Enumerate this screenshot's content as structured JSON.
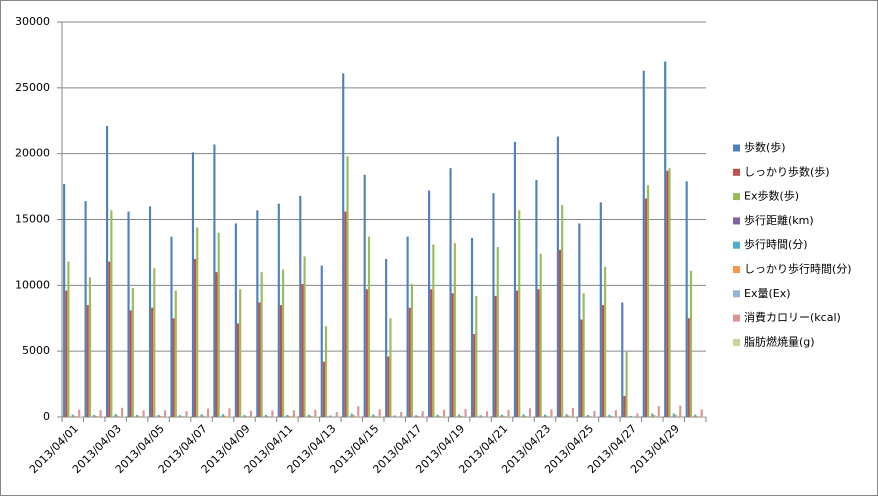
{
  "chart_data": {
    "type": "bar",
    "categories": [
      "2013/04/01",
      null,
      "2013/04/03",
      null,
      "2013/04/05",
      null,
      "2013/04/07",
      null,
      "2013/04/09",
      null,
      "2013/04/11",
      null,
      "2013/04/13",
      null,
      "2013/04/15",
      null,
      "2013/04/17",
      null,
      "2013/04/19",
      null,
      "2013/04/21",
      null,
      "2013/04/23",
      null,
      "2013/04/25",
      null,
      "2013/04/27",
      null,
      "2013/04/29",
      null
    ],
    "series": [
      {
        "name": "歩数(歩)",
        "color": "#4f81bd",
        "values": [
          17700,
          16400,
          22100,
          15600,
          16000,
          13700,
          20100,
          20700,
          14700,
          15700,
          16200,
          16800,
          11500,
          26100,
          18400,
          12000,
          13700,
          17200,
          18900,
          13600,
          17000,
          20900,
          18000,
          21300,
          14700,
          16300,
          8700,
          26300,
          27000,
          17900
        ]
      },
      {
        "name": "しっかり歩数(歩)",
        "color": "#c0504d",
        "values": [
          9600,
          8500,
          11800,
          8100,
          8300,
          7500,
          12000,
          11000,
          7100,
          8700,
          8500,
          10100,
          4200,
          15600,
          9700,
          4600,
          8300,
          9700,
          9400,
          6300,
          9200,
          9600,
          9700,
          12700,
          7400,
          8500,
          1600,
          16600,
          18700,
          7500
        ]
      },
      {
        "name": "Ex歩数(歩)",
        "color": "#9bbb59",
        "values": [
          11800,
          10600,
          15700,
          9800,
          11300,
          9600,
          14400,
          14000,
          9700,
          11000,
          11200,
          12200,
          6900,
          19800,
          13700,
          7500,
          10100,
          13100,
          13200,
          9200,
          12900,
          15700,
          12400,
          16100,
          9400,
          11400,
          5000,
          17600,
          18900,
          11100
        ]
      },
      {
        "name": "歩行距離(km)",
        "color": "#8064a2",
        "values": [
          12.1,
          11.2,
          15.0,
          10.6,
          10.9,
          9.3,
          13.7,
          14.1,
          10.0,
          10.7,
          11.0,
          11.4,
          7.8,
          17.7,
          12.5,
          8.2,
          9.3,
          11.7,
          12.9,
          9.2,
          11.6,
          14.2,
          12.2,
          14.5,
          10.0,
          11.1,
          5.9,
          17.9,
          18.4,
          12.2
        ]
      },
      {
        "name": "歩行時間(分)",
        "color": "#4bacc6",
        "values": [
          178,
          164,
          221,
          156,
          160,
          137,
          201,
          207,
          147,
          157,
          162,
          168,
          115,
          261,
          184,
          120,
          137,
          172,
          189,
          136,
          170,
          209,
          180,
          213,
          147,
          163,
          87,
          263,
          270,
          179
        ]
      },
      {
        "name": "しっかり歩行時間(分)",
        "color": "#f79646",
        "values": [
          80,
          75,
          105,
          72,
          74,
          68,
          108,
          100,
          64,
          78,
          77,
          92,
          38,
          140,
          88,
          42,
          75,
          88,
          85,
          57,
          83,
          87,
          88,
          115,
          67,
          77,
          15,
          150,
          170,
          68
        ]
      },
      {
        "name": "Ex量(Ex)",
        "color": "#95b3d7",
        "values": [
          4,
          3.5,
          5.2,
          3.3,
          3.8,
          3.2,
          4.8,
          4.7,
          3.2,
          3.7,
          3.7,
          4.1,
          2.3,
          6.6,
          4.6,
          2.5,
          3.4,
          4.4,
          4.4,
          3.1,
          4.3,
          5.2,
          4.1,
          5.4,
          3.1,
          3.8,
          1.7,
          5.9,
          6.3,
          3.7
        ]
      },
      {
        "name": "消費カロリー(kcal)",
        "color": "#d99694",
        "values": [
          560,
          520,
          700,
          500,
          510,
          440,
          640,
          660,
          470,
          500,
          520,
          540,
          370,
          820,
          590,
          380,
          440,
          550,
          600,
          430,
          540,
          660,
          570,
          680,
          470,
          520,
          280,
          840,
          860,
          570
        ]
      },
      {
        "name": "脂肪燃焼量(g)",
        "color": "#c3d69b",
        "values": [
          32,
          30,
          45,
          28,
          30,
          27,
          43,
          40,
          26,
          30,
          31,
          35,
          18,
          55,
          35,
          19,
          29,
          36,
          35,
          24,
          34,
          37,
          36,
          45,
          27,
          31,
          9,
          57,
          63,
          28
        ]
      }
    ],
    "ylim": [
      0,
      30000
    ],
    "yticks": [
      0,
      5000,
      10000,
      15000,
      20000,
      25000,
      30000
    ],
    "grid": true,
    "legend": "right"
  }
}
